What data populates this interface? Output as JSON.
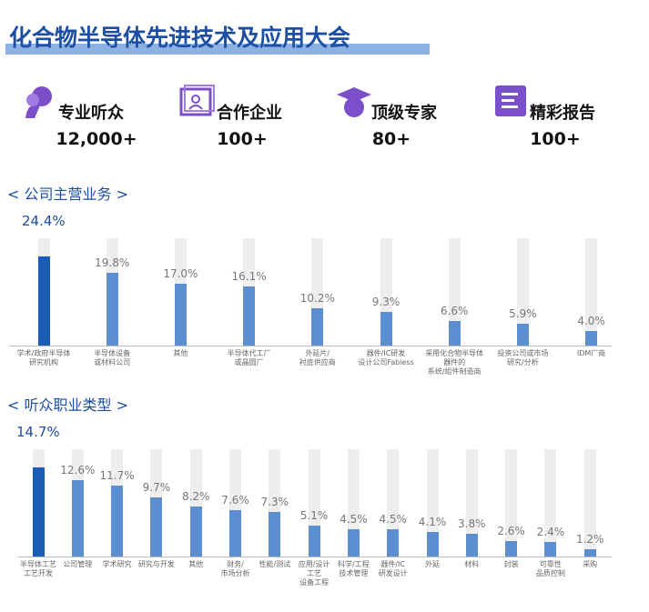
{
  "header": {
    "title": "化合物半导体先进技术及应用大会"
  },
  "stats": [
    {
      "label": "专业听众",
      "value": "12,000+"
    },
    {
      "label": "合作企业",
      "value": "100+"
    },
    {
      "label": "顶级专家",
      "value": "80+"
    },
    {
      "label": "精彩报告",
      "value": "100+"
    }
  ],
  "chart_data": [
    {
      "type": "bar",
      "title": "< 公司主营业务 >",
      "categories": [
        "学术/政府半导体\n研究机构",
        "半导体设备\n或材料公司",
        "其他",
        "半导体代工厂\n或晶圆厂",
        "外延片/\n衬底供应商",
        "器件/IC研发\n设计公司Fabless",
        "采用化合物半导体\n器件的\n系统/组件制造商",
        "投资公司或市场\n研究/分析",
        "IDM厂商"
      ],
      "values": [
        24.4,
        19.8,
        17.0,
        16.1,
        10.2,
        9.3,
        6.6,
        5.9,
        4.0
      ],
      "value_labels": [
        "24.4%",
        "19.8%",
        "17.0%",
        "16.1%",
        "10.2%",
        "9.3%",
        "6.6%",
        "5.9%",
        "4.0%"
      ],
      "color": "#5b8fd0",
      "highlight_color": "#1b5db5"
    },
    {
      "type": "bar",
      "title": "< 听众职业类型 >",
      "categories": [
        "半导体工艺\n工艺开发",
        "公司管理",
        "学术研究",
        "研究与开发",
        "其他",
        "财务/\n市场分析",
        "性能/测试",
        "应用/设计\n工艺\n设备工程",
        "科学/工程\n技术管理",
        "器件/IC\n研发设计",
        "外延",
        "材料",
        "封装",
        "可靠性\n品质控制",
        "采购"
      ],
      "values": [
        14.7,
        12.6,
        11.7,
        9.7,
        8.2,
        7.6,
        7.3,
        5.1,
        4.5,
        4.5,
        4.1,
        3.8,
        2.6,
        2.4,
        1.2
      ],
      "value_labels": [
        "14.7%",
        "12.6%",
        "11.7%",
        "9.7%",
        "8.2%",
        "7.6%",
        "7.3%",
        "5.1%",
        "4.5%",
        "4.5%",
        "4.1%",
        "3.8%",
        "2.6%",
        "2.4%",
        "1.2%"
      ],
      "color": "#5b8fd0",
      "highlight_color": "#1b5db5"
    }
  ]
}
